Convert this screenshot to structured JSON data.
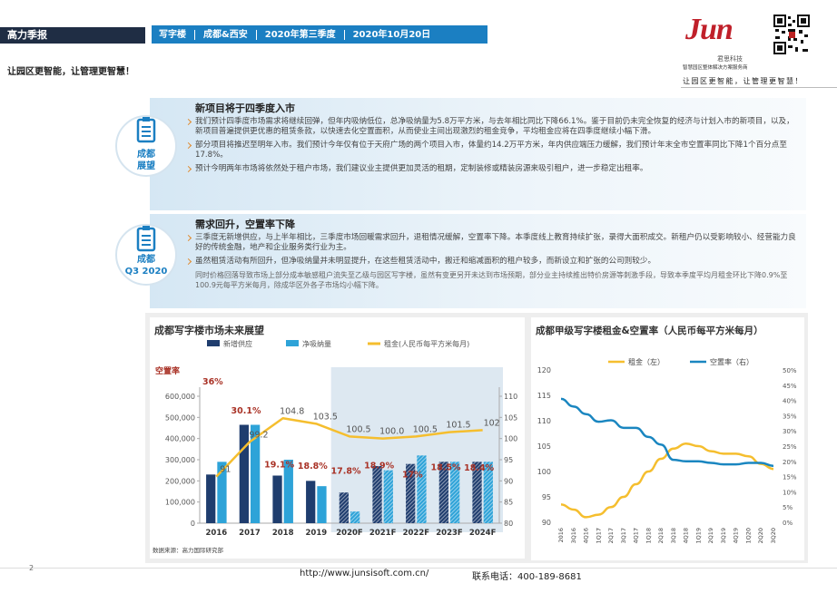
{
  "header": {
    "tag": "高力季报",
    "segments": [
      "写字楼",
      "成都&西安",
      "2020年第三季度",
      "2020年10月20日"
    ],
    "slogan": "让园区更智能，让管理更智慧！",
    "logo": "Jun",
    "logo_sub": "君思科技",
    "logo_tagline": "智慧园区整体解决方案服务商",
    "slogan_right": "让园区更智能，让管理更智慧！"
  },
  "sections": [
    {
      "icon_label": [
        "成都",
        "展望"
      ],
      "title": "新项目将于四季度入市",
      "bullets": [
        "我们预计四季度市场需求将继续回弹，但年内吸纳低位，总净吸纳量为5.8万平方米，与去年相比同比下降66.1%。鉴于目前仍未完全恢复的经济与计划入市的新项目，以及，新项目普遍提供更优惠的租赁条款，以快速去化空置面积，从而使业主间出现激烈的租金竞争，平均租金应将在四季度继续小幅下滑。",
        "部分项目将推迟至明年入市。我们预计今年仅有位于天府广场的两个项目入市，体量约14.2万平方米，年内供应端压力缓解，我们预计年末全市空置率同比下降1个百分点至17.8%。",
        "预计今明两年市场将依然处于租户市场，我们建议业主提供更加灵活的租期，定制装修或精装房源来吸引租户，进一步稳定出租率。"
      ]
    },
    {
      "icon_label": [
        "成都",
        "Q3 2020"
      ],
      "title": "需求回升，空置率下降",
      "bullets": [
        "三季度无新增供应，与上半年相比，三季度市场回暖需求回升，退租情况缓解，空置率下降。本季度线上教育持续扩张，录得大面积成交。新租户仍以受影响较小、经营能力良好的传统金融，地产和企业服务类行业为主。",
        "虽然租赁活动有所回升，但净吸纳量并未明显提升，在这些租赁活动中，搬迁和缩减面积的租户较多，而新设立和扩张的公司则较少。",
        "同时价格回落导致市场上部分成本敏感租户流失至乙级与园区写字楼，虽然有变更另开未达到市场预期，部分业主持续推出特价房源等刺激手段，导致本季度平均月租金环比下降0.9%至100.9元每平方米每月，除成华区外各子市场均小幅下降。"
      ]
    }
  ],
  "chart_data": [
    {
      "type": "bar",
      "title": "成都写字楼市场未来展望",
      "categories": [
        "2016",
        "2017",
        "2018",
        "2019",
        "2020F",
        "2021F",
        "2022F",
        "2023F",
        "2024F"
      ],
      "series": [
        {
          "name": "新增供应",
          "color": "#1f3d6e",
          "values": [
            230000,
            465000,
            225000,
            200000,
            145000,
            270000,
            280000,
            290000,
            290000
          ]
        },
        {
          "name": "净吸纳量",
          "color": "#2ea3d8",
          "values": [
            290000,
            465000,
            300000,
            175000,
            55000,
            250000,
            320000,
            290000,
            290000
          ]
        },
        {
          "name": "租金(人民币每平方米每月)",
          "color": "#f5be2e",
          "type": "line",
          "axis": "y2",
          "values": [
            91,
            99.2,
            104.8,
            103.5,
            100.5,
            100.0,
            100.5,
            101.5,
            102
          ],
          "value_labels": [
            "91",
            "99.2",
            "104.8",
            "103.5",
            "100.5",
            "100.0",
            "100.5",
            "101.5",
            "102"
          ]
        },
        {
          "name": "空置率",
          "color": "#a93226",
          "type": "label",
          "values": [
            36,
            30.1,
            19.1,
            18.8,
            17.8,
            18.9,
            17,
            18.5,
            18.4
          ],
          "value_labels": [
            "36%",
            "30.1%",
            "19.1%",
            "18.8%",
            "17.8%",
            "18.9%",
            "17%",
            "18.5%",
            "18.4%"
          ]
        }
      ],
      "ylim": [
        0,
        600000
      ],
      "yticks": [
        0,
        {
          "value": 100000,
          "label": "100,000"
        },
        {
          "value": 200000,
          "label": "200,000"
        },
        {
          "value": 300000,
          "label": "300,000"
        },
        {
          "value": 400000,
          "label": "400,000"
        },
        {
          "value": 500000,
          "label": "500,000"
        },
        {
          "value": 600000,
          "label": "600,000"
        }
      ],
      "y2lim": [
        80,
        110
      ],
      "y2ticks": [
        80,
        85,
        90,
        95,
        100,
        105,
        110
      ],
      "source": "数据来源：高力国际研究部"
    },
    {
      "type": "line",
      "title": "成都甲级写字楼租金&空置率（人民币每平方米每月）",
      "categories": [
        "2016",
        "3Q16",
        "4Q16",
        "1Q17",
        "2Q17",
        "3Q17",
        "4Q17",
        "1Q18",
        "2Q18",
        "3Q18",
        "4Q18",
        "1Q19",
        "2Q19",
        "3Q19",
        "4Q19",
        "1Q20",
        "2Q20",
        "3Q20"
      ],
      "series": [
        {
          "name": "租金（左）",
          "color": "#f5be2e",
          "values": [
            93.5,
            92.5,
            91,
            91.5,
            93,
            95,
            97.5,
            100,
            102.5,
            104.5,
            105.5,
            105,
            104,
            103.5,
            103.5,
            103,
            101.5,
            100.5
          ]
        },
        {
          "name": "空置率（右）",
          "color": "#1a86c0",
          "axis": "y2",
          "values": [
            40.5,
            38,
            35.5,
            33,
            33.5,
            31,
            31,
            28,
            25.5,
            20.5,
            20,
            20,
            19.5,
            19,
            19,
            19.5,
            19.5,
            18.5
          ]
        }
      ],
      "ylim": [
        90,
        120
      ],
      "yticks": [
        90,
        95,
        100,
        105,
        110,
        115,
        120
      ],
      "y2lim": [
        0,
        50
      ],
      "y2ticks": [
        {
          "value": 0,
          "label": "0%"
        },
        {
          "value": 5,
          "label": "5%"
        },
        {
          "value": 10,
          "label": "10%"
        },
        {
          "value": 15,
          "label": "15%"
        },
        {
          "value": 20,
          "label": "20%"
        },
        {
          "value": 25,
          "label": "25%"
        },
        {
          "value": 30,
          "label": "30%"
        },
        {
          "value": 35,
          "label": "35%"
        },
        {
          "value": 40,
          "label": "40%"
        },
        {
          "value": 45,
          "label": "45%"
        },
        {
          "value": 50,
          "label": "50%"
        }
      ]
    }
  ],
  "footer": {
    "page": "2",
    "url": "http://www.junsisoft.com.cn/",
    "phone": "联系电话：400-189-8681"
  }
}
